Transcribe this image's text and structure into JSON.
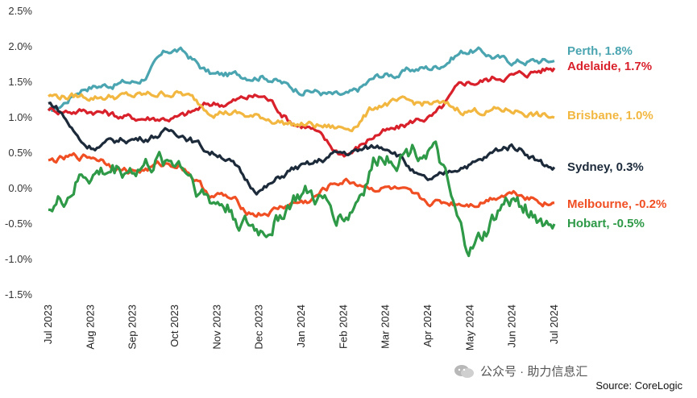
{
  "chart_data": {
    "type": "line",
    "x": [
      "Jul 2023",
      "Aug 2023",
      "Sep 2023",
      "Oct 2023",
      "Nov 2023",
      "Dec 2023",
      "Jan 2024",
      "Feb 2024",
      "Mar 2024",
      "Apr 2024",
      "May 2024",
      "Jun 2024",
      "Jul 2024"
    ],
    "ylim": [
      -1.5,
      2.5
    ],
    "yticks": [
      "2.5%",
      "2.0%",
      "1.5%",
      "1.0%",
      "0.5%",
      "0.0%",
      "-0.5%",
      "-1.0%",
      "-1.5%"
    ],
    "grid": false,
    "series": [
      {
        "name": "Perth",
        "end_label": "Perth, 1.8%",
        "color": "#4aa5b0",
        "values": [
          1.1,
          1.45,
          1.5,
          1.95,
          1.6,
          1.6,
          1.4,
          1.3,
          1.6,
          1.7,
          1.95,
          1.8,
          1.8
        ]
      },
      {
        "name": "Adelaide",
        "end_label": "Adelaide, 1.7%",
        "color": "#d9212c",
        "values": [
          1.1,
          1.1,
          1.0,
          1.0,
          1.2,
          1.3,
          0.9,
          0.5,
          0.8,
          1.0,
          1.5,
          1.6,
          1.7
        ]
      },
      {
        "name": "Brisbane",
        "end_label": "Brisbane, 1.0%",
        "color": "#f2b740",
        "values": [
          1.3,
          1.3,
          1.3,
          1.35,
          1.1,
          1.0,
          0.9,
          0.85,
          1.2,
          1.2,
          1.1,
          1.1,
          1.0
        ]
      },
      {
        "name": "Sydney",
        "end_label": "Sydney, 0.3%",
        "color": "#1c2a3a",
        "values": [
          1.2,
          0.6,
          0.7,
          0.8,
          0.5,
          0.0,
          0.3,
          0.5,
          0.6,
          0.1,
          0.35,
          0.6,
          0.3
        ]
      },
      {
        "name": "Melbourne",
        "end_label": "Melbourne, -0.2%",
        "color": "#f04e23",
        "values": [
          0.4,
          0.45,
          0.25,
          0.35,
          -0.1,
          -0.35,
          -0.2,
          0.1,
          0.0,
          -0.2,
          -0.2,
          -0.05,
          -0.2
        ]
      },
      {
        "name": "Hobart",
        "end_label": "Hobart, -0.5%",
        "color": "#2e9947",
        "values": [
          -0.3,
          0.2,
          0.3,
          0.4,
          -0.2,
          -0.6,
          -0.1,
          -0.35,
          0.5,
          0.6,
          -0.85,
          -0.2,
          -0.5
        ]
      }
    ]
  },
  "source": "Source: CoreLogic",
  "watermark": {
    "text": "公众号 · 助力信息汇"
  }
}
